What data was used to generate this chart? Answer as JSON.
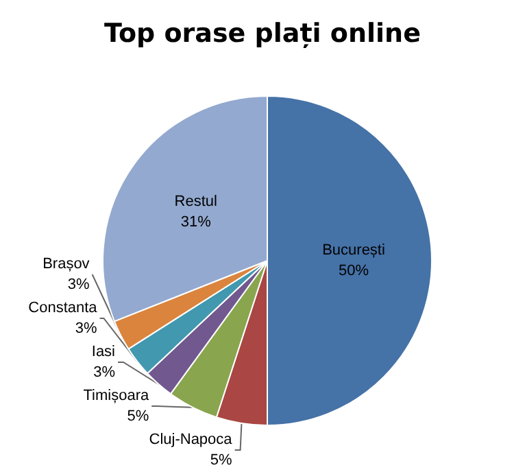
{
  "chart_data": {
    "type": "pie",
    "title": "Top orase plați online",
    "categories": [
      "București",
      "Cluj-Napoca",
      "Timișoara",
      "Iasi",
      "Constanta",
      "Brașov",
      "Restul"
    ],
    "values": [
      50,
      5,
      5,
      3,
      3,
      3,
      31
    ],
    "colors": [
      "#4572a7",
      "#aa4643",
      "#89a54e",
      "#71588f",
      "#4198af",
      "#db843d",
      "#93a9cf"
    ],
    "value_labels": [
      "50%",
      "5%",
      "5%",
      "3%",
      "3%",
      "3%",
      "31%"
    ],
    "legend": false
  }
}
